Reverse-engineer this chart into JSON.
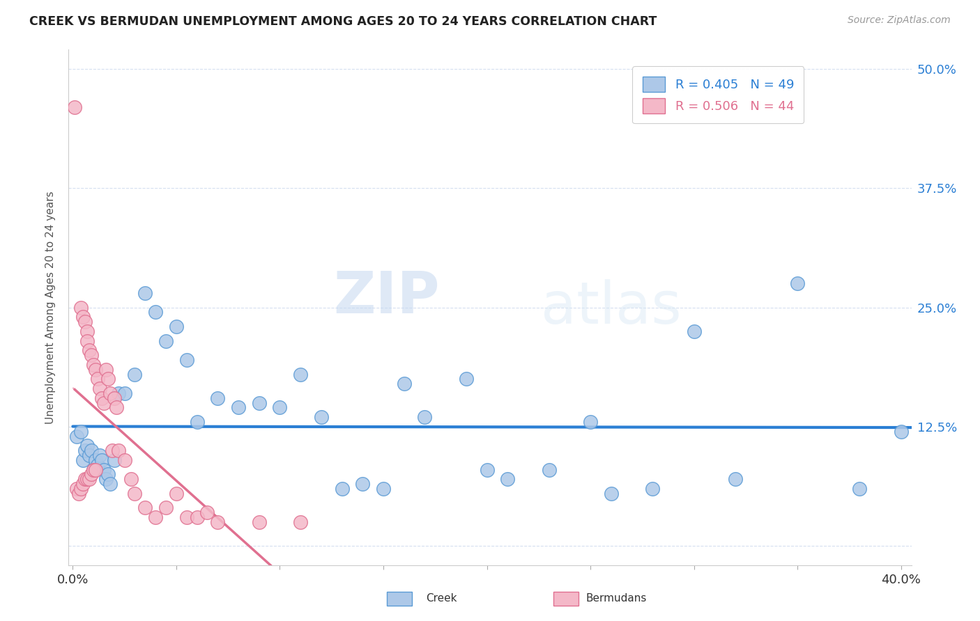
{
  "title": "CREEK VS BERMUDAN UNEMPLOYMENT AMONG AGES 20 TO 24 YEARS CORRELATION CHART",
  "source": "Source: ZipAtlas.com",
  "ylabel": "Unemployment Among Ages 20 to 24 years",
  "xlim": [
    -0.002,
    0.405
  ],
  "ylim": [
    -0.02,
    0.52
  ],
  "xticks": [
    0.0,
    0.05,
    0.1,
    0.15,
    0.2,
    0.25,
    0.3,
    0.35,
    0.4
  ],
  "yticks": [
    0.0,
    0.125,
    0.25,
    0.375,
    0.5
  ],
  "ytick_labels": [
    "",
    "12.5%",
    "25.0%",
    "37.5%",
    "50.0%"
  ],
  "creek_color": "#adc8e8",
  "creek_edge_color": "#5b9bd5",
  "bermuda_color": "#f4b8c8",
  "bermuda_edge_color": "#e07090",
  "creek_line_color": "#2b7fd4",
  "bermuda_line_color": "#e07090",
  "creek_R": 0.405,
  "creek_N": 49,
  "bermuda_R": 0.506,
  "bermuda_N": 44,
  "watermark_zip": "ZIP",
  "watermark_atlas": "atlas",
  "background_color": "#ffffff",
  "grid_color": "#d5dff0",
  "creek_x": [
    0.002,
    0.004,
    0.005,
    0.006,
    0.007,
    0.008,
    0.009,
    0.01,
    0.011,
    0.012,
    0.013,
    0.014,
    0.015,
    0.016,
    0.017,
    0.018,
    0.02,
    0.022,
    0.025,
    0.03,
    0.035,
    0.04,
    0.045,
    0.05,
    0.055,
    0.06,
    0.07,
    0.08,
    0.09,
    0.1,
    0.11,
    0.12,
    0.13,
    0.14,
    0.15,
    0.16,
    0.17,
    0.19,
    0.2,
    0.21,
    0.23,
    0.25,
    0.26,
    0.28,
    0.3,
    0.32,
    0.35,
    0.38,
    0.4
  ],
  "creek_y": [
    0.115,
    0.12,
    0.09,
    0.1,
    0.105,
    0.095,
    0.1,
    0.08,
    0.09,
    0.085,
    0.095,
    0.09,
    0.08,
    0.07,
    0.075,
    0.065,
    0.09,
    0.16,
    0.16,
    0.18,
    0.265,
    0.245,
    0.215,
    0.23,
    0.195,
    0.13,
    0.155,
    0.145,
    0.15,
    0.145,
    0.18,
    0.135,
    0.06,
    0.065,
    0.06,
    0.17,
    0.135,
    0.175,
    0.08,
    0.07,
    0.08,
    0.13,
    0.055,
    0.06,
    0.225,
    0.07,
    0.275,
    0.06,
    0.12
  ],
  "bermuda_x": [
    0.001,
    0.002,
    0.003,
    0.004,
    0.004,
    0.005,
    0.005,
    0.006,
    0.006,
    0.007,
    0.007,
    0.007,
    0.008,
    0.008,
    0.009,
    0.009,
    0.01,
    0.01,
    0.011,
    0.011,
    0.012,
    0.013,
    0.014,
    0.015,
    0.016,
    0.017,
    0.018,
    0.019,
    0.02,
    0.021,
    0.022,
    0.025,
    0.028,
    0.03,
    0.035,
    0.04,
    0.045,
    0.05,
    0.055,
    0.06,
    0.065,
    0.07,
    0.09,
    0.11
  ],
  "bermuda_y": [
    0.46,
    0.06,
    0.055,
    0.06,
    0.25,
    0.065,
    0.24,
    0.07,
    0.235,
    0.225,
    0.07,
    0.215,
    0.205,
    0.07,
    0.2,
    0.075,
    0.19,
    0.08,
    0.185,
    0.08,
    0.175,
    0.165,
    0.155,
    0.15,
    0.185,
    0.175,
    0.16,
    0.1,
    0.155,
    0.145,
    0.1,
    0.09,
    0.07,
    0.055,
    0.04,
    0.03,
    0.04,
    0.055,
    0.03,
    0.03,
    0.035,
    0.025,
    0.025,
    0.025
  ]
}
